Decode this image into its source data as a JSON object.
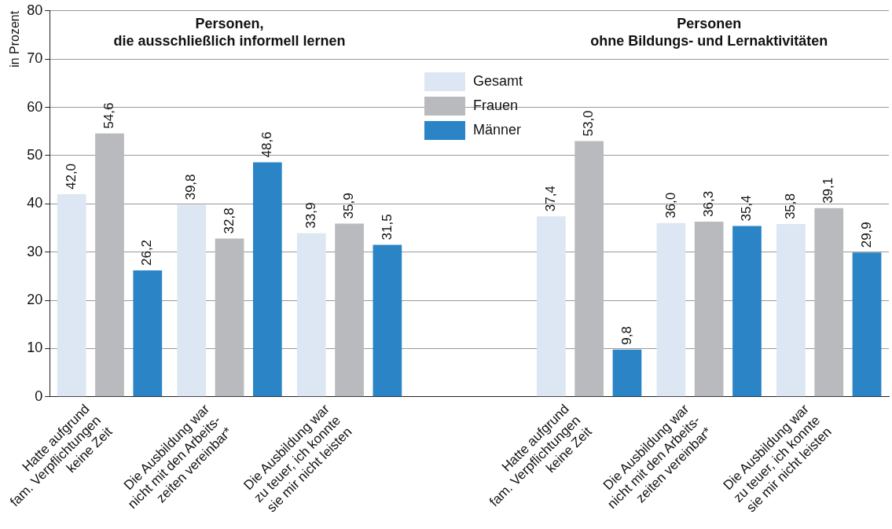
{
  "chart_data": {
    "type": "bar",
    "ylabel": "in Prozent",
    "categories": [
      "Hatte aufgrund\nfam. Verpflichtungen\nkeine Zeit",
      "Die Ausbildung war\nnicht mit den Arbeits-\nzeiten vereinbar*",
      "Die Ausbildung war\nzu teuer, ich konnte\nsie mir nicht leisten",
      null,
      "Hatte aufgrund\nfam. Verpflichtungen\nkeine Zeit",
      "Die Ausbildung war\nnicht mit den Arbeits-\nzeiten vereinbar*",
      "Die Ausbildung war\nzu teuer, ich konnte\nsie mir nicht leisten"
    ],
    "series": [
      {
        "name": "Gesamt",
        "color": "#dde6f3",
        "values": [
          42.0,
          39.8,
          33.9,
          null,
          37.4,
          36.0,
          35.8
        ],
        "value_labels": [
          "42,0",
          "39,8",
          "33,9",
          null,
          "37,4",
          "36,0",
          "35,8"
        ]
      },
      {
        "name": "Frauen",
        "color": "#b9babd",
        "values": [
          54.6,
          32.8,
          35.9,
          null,
          53.0,
          36.3,
          39.1
        ],
        "value_labels": [
          "54,6",
          "32,8",
          "35,9",
          null,
          "53,0",
          "36,3",
          "39,1"
        ]
      },
      {
        "name": "Männer",
        "color": "#2a84c6",
        "values": [
          26.2,
          48.6,
          31.5,
          null,
          9.8,
          35.4,
          29.9
        ],
        "value_labels": [
          "26,2",
          "48,6",
          "31,5",
          null,
          "9,8",
          "35,4",
          "29,9"
        ]
      }
    ],
    "annotations": [
      "Personen,\ndie ausschließlich informell lernen",
      "Personen\nohne Bildungs- und Lernaktivitäten"
    ],
    "ylim": [
      0,
      80
    ],
    "yticks": [
      0,
      10,
      20,
      30,
      40,
      50,
      60,
      70,
      80
    ],
    "grid": "y",
    "legend": "top"
  }
}
